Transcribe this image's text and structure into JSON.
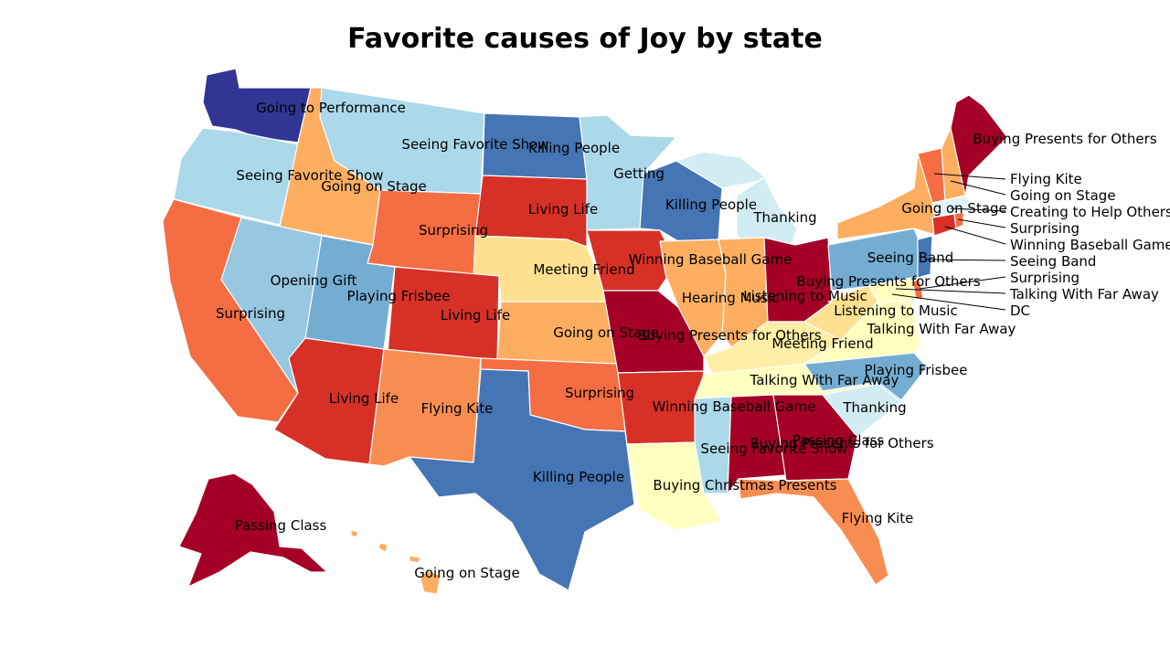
{
  "title": "Favorite causes of Joy by state",
  "colors": {
    "c1": "#a50026",
    "c2": "#d73027",
    "c3": "#f46d43",
    "c4": "#fdae61",
    "c5": "#fee090",
    "c6": "#ffffbf",
    "c7": "#e0f3f8",
    "c8": "#abd9e9",
    "c9": "#74add1",
    "c10": "#4575b4",
    "c11": "#313695",
    "c12": "#f88d52",
    "c13": "#d2ecf4",
    "c14": "#ffeea5",
    "c15": "#97c7e1"
  },
  "labels": {
    "wa": "Going to Performance",
    "mt": "Seeing Favorite Show",
    "nd": "Killing People",
    "mn": "Getting",
    "or": "Seeing Favorite Show",
    "id": "Going on Stage",
    "wy": "Surprising",
    "sd": "Living Life",
    "wi": "Killing People",
    "mi": "Thanking",
    "nv": "Opening Gift",
    "ut": "Playing Frisbee",
    "co": "Living Life",
    "ne": "Meeting Friend",
    "ia": "Winning Baseball Game",
    "ca": "Surprising",
    "ks": "Going on Stage",
    "mo": "Buying Presents for Others",
    "il": "Hearing Music",
    "in": "Listening to Music",
    "oh": "Buying Presents for Others",
    "wv": "Listening to Music",
    "va": "Talking With Far Away",
    "ky": "Meeting Friend",
    "tn": "Talking With Far Away",
    "nc": "Playing Frisbee",
    "sc": "Thanking",
    "az": "Living Life",
    "nm": "Flying Kite",
    "ok": "Surprising",
    "ar": "Winning Baseball Game",
    "ms": "Seeing Favorite Show",
    "al": "Buying Presents for Others",
    "ga": "Passing Class",
    "tx": "Killing People",
    "la": "Buying Christmas Presents",
    "fl": "Flying Kite",
    "ak": "Passing Class",
    "hi": "Going on Stage",
    "ny": "Going on Stage",
    "pa": "Seeing Band",
    "me": "Buying Presents for Others",
    "vt": "Flying Kite",
    "nh": "Going on Stage",
    "ma": "Creating to Help Others",
    "ri": "Surprising",
    "ct": "Winning Baseball Game",
    "nj": "Seeing Band",
    "de": "Surprising",
    "md": "Talking With Far Away",
    "dc": "DC"
  }
}
